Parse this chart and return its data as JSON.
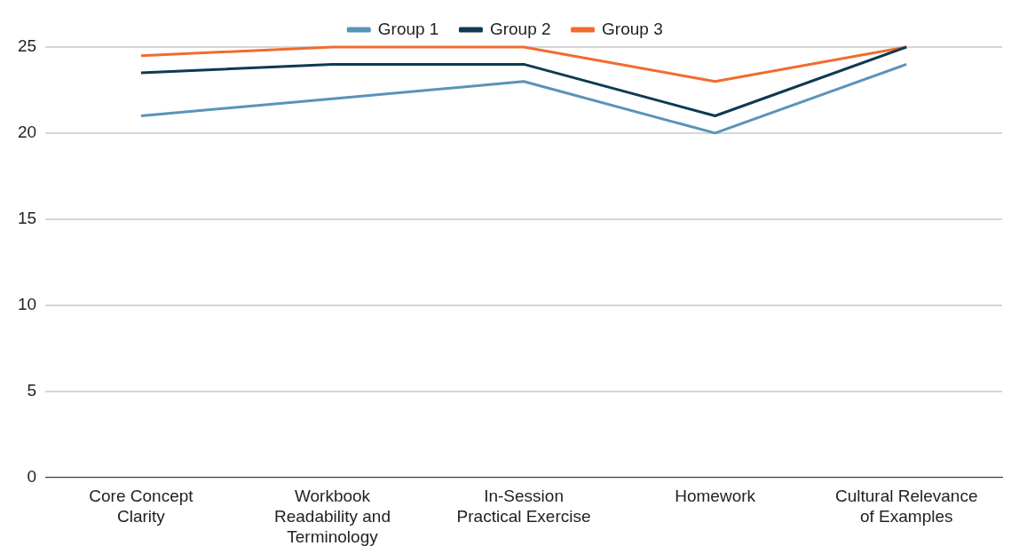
{
  "chart_data": {
    "type": "line",
    "categories": [
      "Core Concept Clarity",
      "Workbook Readability and Terminology",
      "In-Session Practical Exercise",
      "Homework",
      "Cultural Relevance of Examples"
    ],
    "series": [
      {
        "name": "Group 1",
        "color": "#5b93b8",
        "values": [
          21,
          22,
          23,
          20,
          24
        ]
      },
      {
        "name": "Group 2",
        "color": "#0e3a52",
        "values": [
          23.5,
          24,
          24,
          21,
          25
        ]
      },
      {
        "name": "Group 3",
        "color": "#f26b2f",
        "values": [
          24.5,
          25,
          25,
          23,
          25
        ]
      }
    ],
    "ylim": [
      0,
      25
    ],
    "yticks": [
      0,
      5,
      10,
      15,
      20,
      25
    ],
    "grid": "y",
    "legend": "top",
    "marker": "none",
    "line_style": "solid"
  }
}
